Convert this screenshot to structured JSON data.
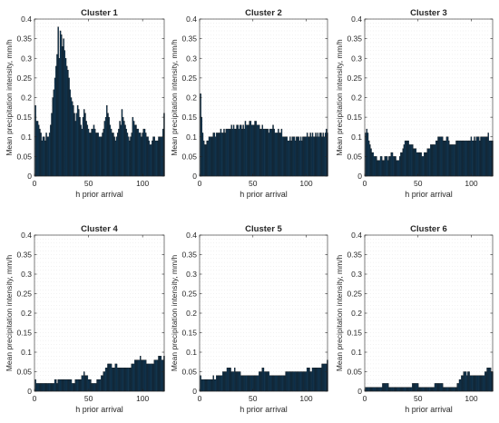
{
  "colors": {
    "bar_fill": "#0f3e61",
    "bar_edge": "#0a0a0a",
    "grid": "#e4e4e4",
    "axis": "#262626",
    "text": "#262626"
  },
  "chart_data": [
    {
      "type": "bar",
      "title": "Cluster 1",
      "xlabel": "h prior arrival",
      "ylabel": "Mean precipitation intensity, mm/h",
      "xlim": [
        0,
        120
      ],
      "ylim": [
        0,
        0.4
      ],
      "xticks": [
        0,
        50,
        100
      ],
      "yticks": [
        0,
        0.05,
        0.1,
        0.15,
        0.2,
        0.25,
        0.3,
        0.35,
        0.4
      ],
      "grid": true,
      "x_range": [
        1,
        120
      ],
      "values": [
        0.18,
        0.14,
        0.14,
        0.13,
        0.12,
        0.11,
        0.09,
        0.1,
        0.1,
        0.09,
        0.11,
        0.1,
        0.1,
        0.11,
        0.13,
        0.16,
        0.2,
        0.22,
        0.25,
        0.28,
        0.31,
        0.38,
        0.3,
        0.37,
        0.36,
        0.33,
        0.35,
        0.32,
        0.3,
        0.28,
        0.27,
        0.25,
        0.22,
        0.2,
        0.19,
        0.18,
        0.16,
        0.14,
        0.16,
        0.18,
        0.17,
        0.15,
        0.13,
        0.12,
        0.15,
        0.17,
        0.16,
        0.14,
        0.13,
        0.12,
        0.11,
        0.11,
        0.12,
        0.12,
        0.13,
        0.12,
        0.11,
        0.11,
        0.11,
        0.1,
        0.1,
        0.1,
        0.11,
        0.12,
        0.14,
        0.15,
        0.18,
        0.16,
        0.15,
        0.13,
        0.12,
        0.11,
        0.11,
        0.1,
        0.09,
        0.1,
        0.11,
        0.12,
        0.14,
        0.13,
        0.17,
        0.15,
        0.14,
        0.13,
        0.12,
        0.11,
        0.1,
        0.09,
        0.1,
        0.11,
        0.15,
        0.14,
        0.13,
        0.13,
        0.12,
        0.12,
        0.11,
        0.11,
        0.1,
        0.11,
        0.12,
        0.12,
        0.11,
        0.1,
        0.1,
        0.09,
        0.08,
        0.08,
        0.09,
        0.1,
        0.1,
        0.09,
        0.09,
        0.09,
        0.1,
        0.1,
        0.1,
        0.1,
        0.12,
        0.16
      ]
    },
    {
      "type": "bar",
      "title": "Cluster 2",
      "xlabel": "h prior arrival",
      "ylabel": "Mean precipitation intensity, mm/h",
      "xlim": [
        0,
        120
      ],
      "ylim": [
        0,
        0.4
      ],
      "xticks": [
        0,
        50,
        100
      ],
      "yticks": [
        0,
        0.05,
        0.1,
        0.15,
        0.2,
        0.25,
        0.3,
        0.35,
        0.4
      ],
      "grid": true,
      "x_range": [
        1,
        120
      ],
      "values": [
        0.21,
        0.15,
        0.11,
        0.09,
        0.08,
        0.08,
        0.09,
        0.09,
        0.1,
        0.1,
        0.1,
        0.1,
        0.11,
        0.11,
        0.1,
        0.11,
        0.11,
        0.11,
        0.11,
        0.12,
        0.11,
        0.11,
        0.12,
        0.11,
        0.12,
        0.12,
        0.12,
        0.12,
        0.12,
        0.13,
        0.12,
        0.13,
        0.12,
        0.12,
        0.13,
        0.13,
        0.12,
        0.13,
        0.13,
        0.12,
        0.13,
        0.12,
        0.14,
        0.13,
        0.13,
        0.13,
        0.14,
        0.14,
        0.13,
        0.13,
        0.13,
        0.14,
        0.14,
        0.13,
        0.13,
        0.13,
        0.12,
        0.12,
        0.13,
        0.12,
        0.12,
        0.12,
        0.12,
        0.12,
        0.11,
        0.12,
        0.12,
        0.12,
        0.13,
        0.12,
        0.11,
        0.11,
        0.11,
        0.12,
        0.11,
        0.11,
        0.12,
        0.1,
        0.1,
        0.1,
        0.1,
        0.1,
        0.09,
        0.09,
        0.1,
        0.09,
        0.1,
        0.1,
        0.1,
        0.09,
        0.1,
        0.1,
        0.1,
        0.09,
        0.1,
        0.09,
        0.1,
        0.1,
        0.1,
        0.1,
        0.11,
        0.1,
        0.1,
        0.11,
        0.1,
        0.11,
        0.1,
        0.1,
        0.11,
        0.1,
        0.11,
        0.1,
        0.11,
        0.11,
        0.1,
        0.11,
        0.1,
        0.11,
        0.12,
        0.11
      ]
    },
    {
      "type": "bar",
      "title": "Cluster 3",
      "xlabel": "h prior arrival",
      "ylabel": "Mean precipitation intensity, mm/h",
      "xlim": [
        0,
        120
      ],
      "ylim": [
        0,
        0.4
      ],
      "xticks": [
        0,
        50,
        100
      ],
      "yticks": [
        0,
        0.05,
        0.1,
        0.15,
        0.2,
        0.25,
        0.3,
        0.35,
        0.4
      ],
      "grid": true,
      "x_range": [
        1,
        120
      ],
      "values": [
        0.11,
        0.12,
        0.11,
        0.09,
        0.08,
        0.07,
        0.06,
        0.06,
        0.05,
        0.05,
        0.05,
        0.04,
        0.04,
        0.04,
        0.05,
        0.05,
        0.04,
        0.04,
        0.05,
        0.05,
        0.05,
        0.04,
        0.05,
        0.05,
        0.06,
        0.06,
        0.05,
        0.05,
        0.05,
        0.04,
        0.04,
        0.04,
        0.05,
        0.06,
        0.06,
        0.07,
        0.08,
        0.09,
        0.09,
        0.09,
        0.09,
        0.08,
        0.08,
        0.08,
        0.08,
        0.07,
        0.07,
        0.07,
        0.06,
        0.06,
        0.06,
        0.06,
        0.06,
        0.05,
        0.05,
        0.06,
        0.06,
        0.06,
        0.07,
        0.07,
        0.07,
        0.08,
        0.08,
        0.08,
        0.08,
        0.08,
        0.09,
        0.09,
        0.1,
        0.1,
        0.1,
        0.1,
        0.1,
        0.09,
        0.09,
        0.09,
        0.1,
        0.1,
        0.09,
        0.08,
        0.08,
        0.08,
        0.08,
        0.08,
        0.08,
        0.09,
        0.09,
        0.09,
        0.09,
        0.09,
        0.09,
        0.09,
        0.09,
        0.09,
        0.09,
        0.09,
        0.09,
        0.09,
        0.09,
        0.1,
        0.09,
        0.09,
        0.1,
        0.09,
        0.1,
        0.1,
        0.1,
        0.09,
        0.1,
        0.1,
        0.1,
        0.1,
        0.1,
        0.1,
        0.1,
        0.11,
        0.09,
        0.09,
        0.09,
        0.09
      ]
    },
    {
      "type": "bar",
      "title": "Cluster 4",
      "xlabel": "h prior arrival",
      "ylabel": "Mean precipitation intensity, mm/h",
      "xlim": [
        0,
        120
      ],
      "ylim": [
        0,
        0.4
      ],
      "xticks": [
        0,
        50,
        100
      ],
      "yticks": [
        0,
        0.05,
        0.1,
        0.15,
        0.2,
        0.25,
        0.3,
        0.35,
        0.4
      ],
      "grid": true,
      "x_range": [
        1,
        120
      ],
      "values": [
        0.03,
        0.02,
        0.02,
        0.02,
        0.02,
        0.02,
        0.02,
        0.02,
        0.02,
        0.02,
        0.02,
        0.02,
        0.02,
        0.02,
        0.02,
        0.02,
        0.02,
        0.02,
        0.03,
        0.03,
        0.02,
        0.03,
        0.03,
        0.03,
        0.03,
        0.03,
        0.03,
        0.03,
        0.03,
        0.03,
        0.03,
        0.03,
        0.03,
        0.03,
        0.02,
        0.02,
        0.02,
        0.03,
        0.03,
        0.03,
        0.03,
        0.03,
        0.03,
        0.04,
        0.04,
        0.05,
        0.04,
        0.04,
        0.04,
        0.03,
        0.03,
        0.03,
        0.02,
        0.02,
        0.02,
        0.02,
        0.02,
        0.03,
        0.03,
        0.03,
        0.03,
        0.04,
        0.04,
        0.05,
        0.05,
        0.06,
        0.06,
        0.07,
        0.07,
        0.07,
        0.07,
        0.06,
        0.06,
        0.06,
        0.07,
        0.07,
        0.06,
        0.06,
        0.06,
        0.06,
        0.06,
        0.06,
        0.06,
        0.06,
        0.06,
        0.06,
        0.06,
        0.06,
        0.06,
        0.07,
        0.07,
        0.07,
        0.08,
        0.08,
        0.08,
        0.08,
        0.08,
        0.09,
        0.08,
        0.08,
        0.08,
        0.08,
        0.08,
        0.07,
        0.07,
        0.07,
        0.07,
        0.07,
        0.07,
        0.07,
        0.08,
        0.08,
        0.08,
        0.08,
        0.09,
        0.09,
        0.09,
        0.08,
        0.08,
        0.09
      ]
    },
    {
      "type": "bar",
      "title": "Cluster 5",
      "xlabel": "h prior arrival",
      "ylabel": "Mean precipitation intensity, mm/h",
      "xlim": [
        0,
        120
      ],
      "ylim": [
        0,
        0.4
      ],
      "xticks": [
        0,
        50,
        100
      ],
      "yticks": [
        0,
        0.05,
        0.1,
        0.15,
        0.2,
        0.25,
        0.3,
        0.35,
        0.4
      ],
      "grid": true,
      "x_range": [
        1,
        120
      ],
      "values": [
        0.04,
        0.03,
        0.03,
        0.03,
        0.03,
        0.03,
        0.03,
        0.03,
        0.03,
        0.03,
        0.03,
        0.03,
        0.04,
        0.03,
        0.03,
        0.04,
        0.04,
        0.04,
        0.04,
        0.04,
        0.04,
        0.05,
        0.05,
        0.05,
        0.05,
        0.06,
        0.06,
        0.06,
        0.06,
        0.05,
        0.05,
        0.05,
        0.06,
        0.05,
        0.05,
        0.05,
        0.05,
        0.05,
        0.04,
        0.04,
        0.04,
        0.04,
        0.04,
        0.04,
        0.04,
        0.04,
        0.04,
        0.04,
        0.04,
        0.04,
        0.04,
        0.04,
        0.04,
        0.04,
        0.04,
        0.05,
        0.05,
        0.05,
        0.06,
        0.06,
        0.05,
        0.05,
        0.05,
        0.05,
        0.05,
        0.04,
        0.04,
        0.04,
        0.04,
        0.04,
        0.04,
        0.04,
        0.04,
        0.04,
        0.04,
        0.04,
        0.04,
        0.04,
        0.04,
        0.04,
        0.05,
        0.05,
        0.05,
        0.05,
        0.05,
        0.05,
        0.05,
        0.05,
        0.05,
        0.05,
        0.05,
        0.05,
        0.05,
        0.05,
        0.05,
        0.05,
        0.05,
        0.05,
        0.05,
        0.05,
        0.06,
        0.06,
        0.06,
        0.05,
        0.05,
        0.06,
        0.06,
        0.06,
        0.06,
        0.06,
        0.06,
        0.06,
        0.06,
        0.06,
        0.07,
        0.07,
        0.07,
        0.07,
        0.07,
        0.08
      ]
    },
    {
      "type": "bar",
      "title": "Cluster 6",
      "xlabel": "h prior arrival",
      "ylabel": "Mean precipitation intensity, mm/h",
      "xlim": [
        0,
        120
      ],
      "ylim": [
        0,
        0.4
      ],
      "xticks": [
        0,
        50,
        100
      ],
      "yticks": [
        0,
        0.05,
        0.1,
        0.15,
        0.2,
        0.25,
        0.3,
        0.35,
        0.4
      ],
      "grid": true,
      "x_range": [
        1,
        120
      ],
      "values": [
        0.01,
        0.01,
        0.01,
        0.01,
        0.01,
        0.01,
        0.01,
        0.01,
        0.01,
        0.01,
        0.01,
        0.01,
        0.01,
        0.01,
        0.01,
        0.01,
        0.02,
        0.02,
        0.02,
        0.02,
        0.02,
        0.02,
        0.01,
        0.01,
        0.01,
        0.01,
        0.01,
        0.01,
        0.01,
        0.01,
        0.01,
        0.01,
        0.01,
        0.01,
        0.01,
        0.01,
        0.01,
        0.01,
        0.01,
        0.01,
        0.01,
        0.01,
        0.01,
        0.01,
        0.02,
        0.02,
        0.02,
        0.02,
        0.02,
        0.02,
        0.01,
        0.01,
        0.01,
        0.01,
        0.01,
        0.01,
        0.01,
        0.01,
        0.01,
        0.01,
        0.01,
        0.01,
        0.01,
        0.01,
        0.01,
        0.02,
        0.02,
        0.02,
        0.02,
        0.02,
        0.02,
        0.02,
        0.02,
        0.01,
        0.01,
        0.01,
        0.01,
        0.01,
        0.01,
        0.01,
        0.01,
        0.01,
        0.01,
        0.01,
        0.01,
        0.01,
        0.02,
        0.02,
        0.03,
        0.03,
        0.04,
        0.04,
        0.05,
        0.05,
        0.05,
        0.04,
        0.05,
        0.05,
        0.04,
        0.04,
        0.04,
        0.04,
        0.04,
        0.04,
        0.04,
        0.04,
        0.04,
        0.04,
        0.04,
        0.04,
        0.04,
        0.04,
        0.05,
        0.05,
        0.06,
        0.06,
        0.06,
        0.06,
        0.05,
        0.05
      ]
    }
  ]
}
